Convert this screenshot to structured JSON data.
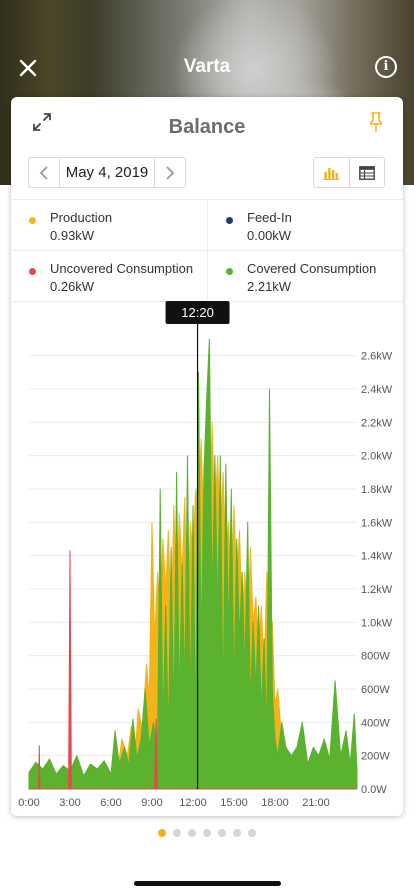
{
  "header": {
    "title": "Varta"
  },
  "card": {
    "title": "Balance",
    "date": "May 4, 2019",
    "legend": [
      {
        "name": "Production",
        "value": "0.93kW",
        "color": "#f3b319"
      },
      {
        "name": "Feed-In",
        "value": "0.00kW",
        "color": "#1f3a6b"
      },
      {
        "name": "Uncovered Consumption",
        "value": "0.26kW",
        "color": "#e8474c"
      },
      {
        "name": "Covered Consumption",
        "value": "2.21kW",
        "color": "#5ab22e"
      }
    ]
  },
  "chart_data": {
    "type": "area",
    "cursor_time": "12:20",
    "x_ticks": [
      "0:00",
      "3:00",
      "6:00",
      "9:00",
      "12:00",
      "15:00",
      "18:00",
      "21:00"
    ],
    "y_ticks": [
      "0.0W",
      "200W",
      "400W",
      "600W",
      "800W",
      "1.0kW",
      "1.2kW",
      "1.4kW",
      "1.6kW",
      "1.8kW",
      "2.0kW",
      "2.2kW",
      "2.4kW",
      "2.6kW"
    ],
    "ylim": [
      0,
      2700
    ],
    "xlim_hours": [
      0,
      24
    ],
    "series": [
      {
        "name": "Production",
        "color": "#f3b319",
        "x": [
          0,
          6,
          6.5,
          6.8,
          7.2,
          7.5,
          7.8,
          8,
          8.3,
          8.6,
          8.8,
          9,
          9.2,
          9.4,
          9.6,
          9.8,
          10,
          10.2,
          10.4,
          10.6,
          10.8,
          11,
          11.2,
          11.4,
          11.6,
          11.8,
          12,
          12.2,
          12.4,
          12.6,
          12.8,
          13,
          13.2,
          13.4,
          13.6,
          13.8,
          14,
          14.2,
          14.4,
          14.6,
          14.8,
          15,
          15.2,
          15.4,
          15.6,
          15.8,
          16,
          16.2,
          16.4,
          16.6,
          16.8,
          17,
          17.2,
          17.4,
          17.6,
          17.8,
          18,
          18.2,
          18.5,
          18.8,
          19.2,
          24
        ],
        "y": [
          0,
          0,
          120,
          300,
          200,
          380,
          250,
          480,
          350,
          750,
          550,
          1600,
          900,
          1300,
          1000,
          1500,
          1200,
          1550,
          950,
          1700,
          1100,
          1650,
          1300,
          1750,
          900,
          1600,
          1400,
          1800,
          1700,
          2100,
          1500,
          2300,
          1400,
          2200,
          1600,
          2000,
          1500,
          1900,
          1300,
          1600,
          1100,
          1700,
          1250,
          1550,
          1000,
          1300,
          900,
          1450,
          1000,
          1150,
          800,
          1100,
          700,
          1300,
          600,
          1000,
          500,
          600,
          300,
          150,
          0,
          0
        ]
      },
      {
        "name": "Covered Consumption",
        "color": "#5ab22e",
        "x": [
          0,
          0.5,
          1,
          1.5,
          2,
          2.5,
          3,
          3.5,
          4,
          4.5,
          5,
          5.5,
          6,
          6.3,
          6.6,
          7,
          7.3,
          7.6,
          7.9,
          8.2,
          8.5,
          8.8,
          9.1,
          9.4,
          9.6,
          9.8,
          10,
          10.2,
          10.4,
          10.6,
          10.8,
          11,
          11.2,
          11.4,
          11.6,
          11.8,
          12,
          12.2,
          12.4,
          12.6,
          12.8,
          13,
          13.2,
          13.4,
          13.6,
          13.8,
          14,
          14.2,
          14.4,
          14.6,
          14.8,
          15,
          15.2,
          15.4,
          15.6,
          15.8,
          16,
          16.2,
          16.4,
          16.6,
          16.8,
          17,
          17.2,
          17.4,
          17.6,
          17.8,
          18,
          18.2,
          18.5,
          18.8,
          19.2,
          19.6,
          20,
          20.4,
          20.8,
          21.2,
          21.6,
          22,
          22.4,
          22.8,
          23.2,
          23.5,
          23.8,
          24
        ],
        "y": [
          100,
          160,
          120,
          180,
          90,
          140,
          110,
          200,
          80,
          150,
          120,
          170,
          90,
          350,
          150,
          250,
          140,
          420,
          180,
          300,
          600,
          250,
          400,
          220,
          1800,
          350,
          1100,
          300,
          1450,
          400,
          1900,
          500,
          1350,
          600,
          2000,
          450,
          1700,
          350,
          2500,
          800,
          1900,
          2350,
          2700,
          1100,
          2000,
          1050,
          2000,
          500,
          1950,
          900,
          1800,
          600,
          1500,
          900,
          1300,
          700,
          1600,
          500,
          1000,
          600,
          1100,
          450,
          900,
          300,
          2400,
          600,
          300,
          200,
          400,
          250,
          200,
          250,
          400,
          150,
          250,
          200,
          300,
          180,
          650,
          200,
          350,
          150,
          450,
          120
        ]
      },
      {
        "name": "Uncovered Consumption",
        "color": "#e8474c",
        "x": [
          0,
          0.7,
          0.75,
          0.8,
          2.9,
          3,
          3.1,
          9.2,
          9.3,
          9.4,
          24
        ],
        "y": [
          0,
          0,
          260,
          0,
          0,
          1430,
          0,
          0,
          420,
          0,
          0
        ]
      }
    ]
  },
  "pager": {
    "count": 7,
    "active": 0
  }
}
